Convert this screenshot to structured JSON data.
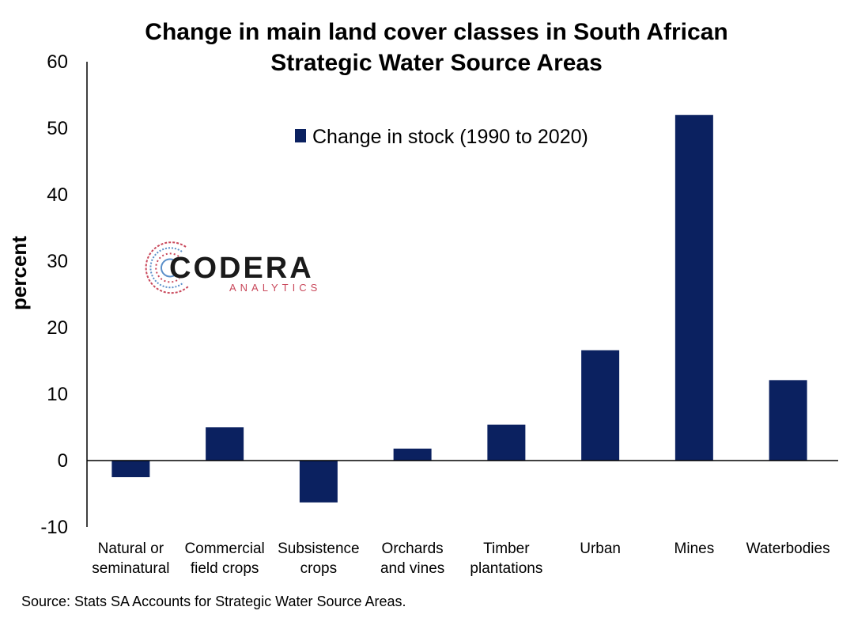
{
  "chart_data": {
    "type": "bar",
    "title_line1": "Change in main land cover classes in South African",
    "title_line2": "Strategic Water Source Areas",
    "ylabel": "percent",
    "ylim": [
      -10,
      60
    ],
    "yticks": [
      -10,
      0,
      10,
      20,
      30,
      40,
      50,
      60
    ],
    "grid": false,
    "legend_position": "top-center",
    "categories": [
      [
        "Natural or",
        "seminatural"
      ],
      [
        "Commercial",
        "field crops"
      ],
      [
        "Subsistence",
        "crops"
      ],
      [
        "Orchards",
        "and vines"
      ],
      [
        "Timber",
        "plantations"
      ],
      [
        "Urban"
      ],
      [
        "Mines"
      ],
      [
        "Waterbodies"
      ]
    ],
    "series": [
      {
        "name": "Change in stock (1990 to 2020)",
        "color": "#0b2160",
        "values": [
          -2.5,
          5.0,
          -6.3,
          1.8,
          5.4,
          16.6,
          52.0,
          12.1
        ]
      }
    ]
  },
  "logo": {
    "name": "CODERA",
    "sub": "ANALYTICS"
  },
  "source": "Source: Stats SA Accounts for Strategic Water Source Areas."
}
